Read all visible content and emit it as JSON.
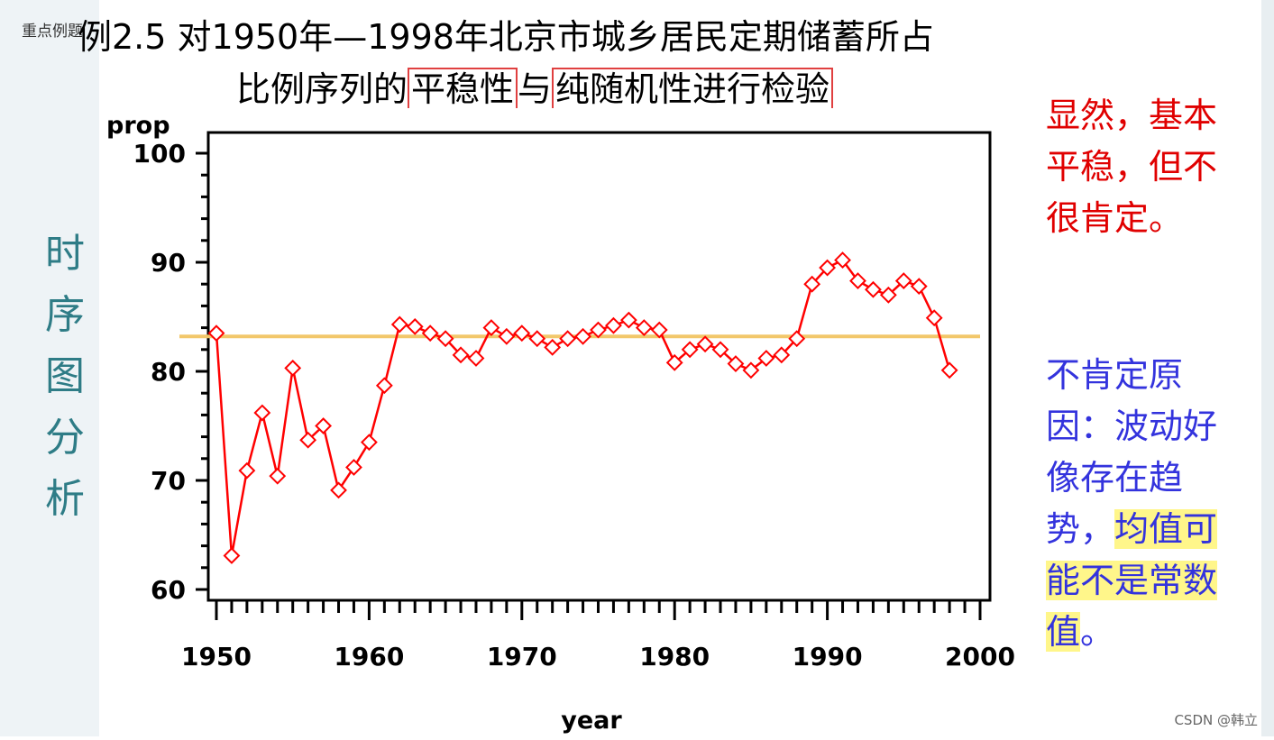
{
  "corner_tag": "重点例题",
  "title": {
    "line1": "例2.5  对1950年—1998年北京市城乡居民定期储蓄所占",
    "line2_prefix": "比例序列的",
    "boxed1": "平稳性",
    "line2_mid": "与",
    "boxed2": "纯随机性进行检验"
  },
  "side_label": [
    "时",
    "序",
    "图",
    "分",
    "析"
  ],
  "note_red": "显然，基本平稳，但不很肯定。",
  "note_blue": {
    "text": "不肯定原因：波动好像存在趋势，",
    "highlighted": "均值可能不是常数值",
    "tail": "。"
  },
  "watermark": "CSDN @韩立",
  "colors": {
    "series": "#ff0000",
    "mean_line": "#f2c76a",
    "note_red": "#e00000",
    "note_blue": "#3333dd",
    "side_label": "#2e7c86",
    "highlight": "#fff68a"
  },
  "chart_data": {
    "type": "line",
    "xlabel": "year",
    "ylabel": "prop",
    "xlim": [
      1950,
      2000
    ],
    "ylim": [
      60,
      100
    ],
    "x_ticks": [
      1950,
      1960,
      1970,
      1980,
      1990,
      2000
    ],
    "y_ticks": [
      60,
      70,
      80,
      90,
      100
    ],
    "grid": false,
    "marker": "diamond",
    "mean_line": 83.2,
    "x": [
      1950,
      1951,
      1952,
      1953,
      1954,
      1955,
      1956,
      1957,
      1958,
      1959,
      1960,
      1961,
      1962,
      1963,
      1964,
      1965,
      1966,
      1967,
      1968,
      1969,
      1970,
      1971,
      1972,
      1973,
      1974,
      1975,
      1976,
      1977,
      1978,
      1979,
      1980,
      1981,
      1982,
      1983,
      1984,
      1985,
      1986,
      1987,
      1988,
      1989,
      1990,
      1991,
      1992,
      1993,
      1994,
      1995,
      1996,
      1997,
      1998
    ],
    "values": [
      83.5,
      63.1,
      70.9,
      76.2,
      70.4,
      80.3,
      73.7,
      75.0,
      69.1,
      71.2,
      73.5,
      78.7,
      84.3,
      84.1,
      83.5,
      83.0,
      81.5,
      81.2,
      84.0,
      83.2,
      83.5,
      83.0,
      82.2,
      83.0,
      83.2,
      83.8,
      84.2,
      84.7,
      84.0,
      83.8,
      80.8,
      82.0,
      82.5,
      82.0,
      80.7,
      80.1,
      81.2,
      81.5,
      83.0,
      88.0,
      89.5,
      90.2,
      88.3,
      87.5,
      87.0,
      88.3,
      87.8,
      84.9,
      80.1
    ]
  }
}
